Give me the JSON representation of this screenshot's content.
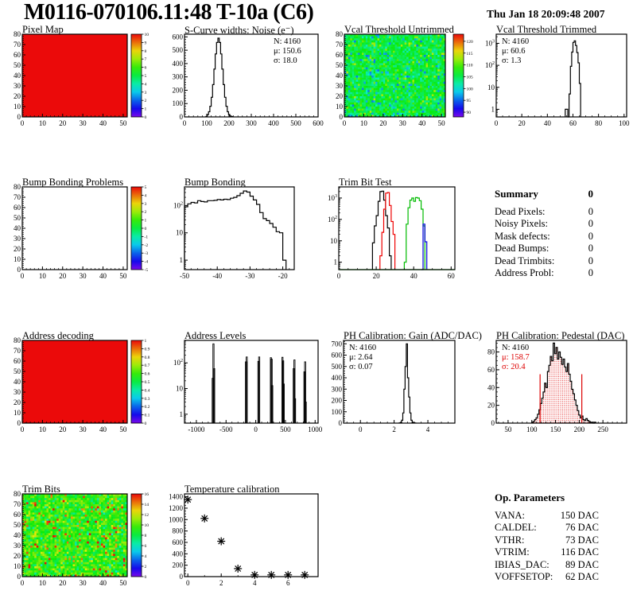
{
  "header": {
    "title": "M0116-070106.11:48 T-10a (C6)",
    "date": "Thu Jan 18 20:09:48 2007"
  },
  "summary": {
    "title": "Summary",
    "value": "0",
    "rows": [
      {
        "label": "Dead Pixels:",
        "value": "0"
      },
      {
        "label": "Noisy Pixels:",
        "value": "0"
      },
      {
        "label": "Mask defects:",
        "value": "0"
      },
      {
        "label": "Dead Bumps:",
        "value": "0"
      },
      {
        "label": "Dead Trimbits:",
        "value": "0"
      },
      {
        "label": "Address Probl:",
        "value": "0"
      }
    ]
  },
  "op_parameters": {
    "title": "Op. Parameters",
    "rows": [
      {
        "label": "VANA:",
        "value": "150 DAC"
      },
      {
        "label": "CALDEL:",
        "value": "76 DAC"
      },
      {
        "label": "VTHR:",
        "value": "73 DAC"
      },
      {
        "label": "VTRIM:",
        "value": "116 DAC"
      },
      {
        "label": "IBIAS_DAC:",
        "value": "89 DAC"
      },
      {
        "label": "VOFFSETOP:",
        "value": "62 DAC"
      }
    ]
  },
  "chart_data": [
    {
      "id": "pixel_map",
      "type": "heatmap",
      "title": "Pixel Map",
      "fill": "uniform",
      "uniform_value": 10,
      "xaxis": {
        "min": 0,
        "max": 52,
        "ticks": [
          0,
          10,
          20,
          30,
          40,
          50
        ],
        "minor": 2
      },
      "yaxis": {
        "min": 0,
        "max": 80,
        "ticks": [
          0,
          10,
          20,
          30,
          40,
          50,
          60,
          70,
          80
        ],
        "minor": 2
      },
      "colorbar": {
        "min": 0,
        "max": 10,
        "ticks": [
          0,
          1,
          2,
          3,
          4,
          5,
          6,
          7,
          8,
          9,
          10
        ]
      }
    },
    {
      "id": "scurve",
      "type": "histogram",
      "title": "S-Curve widths: Noise (e⁻)",
      "xaxis": {
        "min": 0,
        "max": 600,
        "ticks": [
          0,
          100,
          200,
          300,
          400,
          500,
          600
        ],
        "minor": 20
      },
      "yaxis": {
        "min": 0,
        "max": 620,
        "ticks": [
          0,
          100,
          200,
          300,
          400,
          500,
          600
        ],
        "minor": 20
      },
      "series": [
        {
          "color": "#000000",
          "start": 96,
          "width": 6,
          "counts": [
            3,
            17,
            39,
            80,
            147,
            242,
            358,
            472,
            558,
            590,
            558,
            472,
            358,
            242,
            147,
            80,
            39,
            17,
            7,
            3
          ]
        }
      ],
      "stats": [
        {
          "text": "N: 4160"
        },
        {
          "text": "μ: 150.6"
        },
        {
          "text": "σ: 18.0"
        }
      ]
    },
    {
      "id": "vcal_untrimmed",
      "type": "heatmap",
      "title": "Vcal Threshold Untrimmed",
      "fill": "noise",
      "noise": {
        "mean": 105.5,
        "sd": 4.2,
        "low": [
          95.5,
          0.05
        ],
        "high": [
          110.5,
          0.05
        ]
      },
      "xaxis": {
        "min": 0,
        "max": 52,
        "ticks": [
          0,
          10,
          20,
          30,
          40,
          50
        ],
        "minor": 2
      },
      "yaxis": {
        "min": 0,
        "max": 80,
        "ticks": [
          0,
          10,
          20,
          30,
          40,
          50,
          60,
          70,
          80
        ],
        "minor": 2
      },
      "colorbar": {
        "min": 88,
        "max": 123,
        "ticks": [
          90,
          95,
          100,
          105,
          110,
          115,
          120
        ]
      }
    },
    {
      "id": "vcal_trimmed",
      "type": "histogram",
      "title": "Vcal Threshold Trimmed",
      "xaxis": {
        "min": 0,
        "max": 102,
        "ticks": [
          0,
          20,
          40,
          60,
          80,
          100
        ],
        "minor": 5
      },
      "yaxis": {
        "log": true,
        "min": 0.45,
        "max": 2600
      },
      "series": [
        {
          "color": "#000000",
          "start": 54,
          "width": 1,
          "counts": [
            1,
            1,
            0,
            5,
            90,
            400,
            1100,
            1300,
            800,
            380,
            130,
            15
          ]
        }
      ],
      "stats": [
        {
          "text": "N: 4160"
        },
        {
          "text": "μ: 60.6"
        },
        {
          "text": "σ:  1.3"
        }
      ]
    },
    {
      "id": "bump_problems",
      "type": "heatmap",
      "title": "Bump Bonding Problems",
      "fill": "empty",
      "xaxis": {
        "min": 0,
        "max": 52,
        "ticks": [
          0,
          10,
          20,
          30,
          40,
          50
        ],
        "minor": 2
      },
      "yaxis": {
        "min": 0,
        "max": 80,
        "ticks": [
          0,
          10,
          20,
          30,
          40,
          50,
          60,
          70,
          80
        ],
        "minor": 2
      },
      "colorbar": {
        "min": -5,
        "max": 5,
        "ticks": [
          -5,
          -4,
          -3,
          -2,
          -1,
          0,
          1,
          2,
          3,
          4,
          5
        ]
      }
    },
    {
      "id": "bump_bonding",
      "type": "histogram",
      "title": "Bump Bonding",
      "xaxis": {
        "min": -50,
        "max": -16.5,
        "ticks": [
          -50,
          -40,
          -30,
          -20
        ],
        "minor": 2
      },
      "yaxis": {
        "log": true,
        "min": 0.45,
        "max": 480
      },
      "series": [
        {
          "color": "#000000",
          "start": -50,
          "width": 1,
          "counts": [
            90,
            115,
            130,
            125,
            150,
            140,
            135,
            150,
            150,
            155,
            165,
            160,
            170,
            165,
            185,
            200,
            230,
            280,
            340,
            310,
            220,
            160,
            110,
            55,
            33,
            28,
            22,
            16,
            11,
            10,
            1
          ]
        }
      ]
    },
    {
      "id": "trim_bit_test",
      "type": "histogram",
      "title": "Trim Bit Test",
      "baseline_color": "#00bb00",
      "xaxis": {
        "min": 0,
        "max": 62,
        "ticks": [
          0,
          20,
          40,
          60
        ],
        "minor": 5
      },
      "yaxis": {
        "log": true,
        "min": 0.45,
        "max": 3300
      },
      "series": [
        {
          "color": "#000000",
          "start": 18,
          "width": 1,
          "counts": [
            8,
            50,
            150,
            700,
            2000,
            2100,
            800,
            150,
            40,
            2
          ]
        },
        {
          "color": "#ee0000",
          "start": 22,
          "width": 1,
          "counts": [
            2,
            25,
            300,
            1700,
            1800,
            450,
            80,
            20
          ]
        },
        {
          "color": "#00bb00",
          "start": 35,
          "width": 1,
          "counts": [
            1,
            60,
            350,
            800,
            1000,
            700,
            1050,
            1000,
            750,
            300,
            50
          ]
        },
        {
          "color": "#0000dd",
          "start": 44,
          "width": 1,
          "counts": [
            0,
            60,
            9
          ]
        }
      ]
    },
    {
      "id": "address_decoding",
      "type": "heatmap",
      "title": "Address decoding",
      "fill": "uniform",
      "uniform_value": 1,
      "xaxis": {
        "min": 0,
        "max": 52,
        "ticks": [
          0,
          10,
          20,
          30,
          40,
          50
        ],
        "minor": 2
      },
      "yaxis": {
        "min": 0,
        "max": 80,
        "ticks": [
          0,
          10,
          20,
          30,
          40,
          50,
          60,
          70,
          80
        ],
        "minor": 2
      },
      "colorbar": {
        "min": 0,
        "max": 1,
        "ticks": [
          0,
          0.1,
          0.2,
          0.3,
          0.4,
          0.5,
          0.6,
          0.7,
          0.8,
          0.9,
          1
        ]
      }
    },
    {
      "id": "address_levels",
      "type": "spikes",
      "title": "Address Levels",
      "xaxis": {
        "min": -1200,
        "max": 1050,
        "ticks": [
          -1000,
          -500,
          0,
          500,
          1000
        ],
        "minor": 100
      },
      "yaxis": {
        "log": true,
        "min": 0.45,
        "max": 750
      },
      "points": [
        [
          -725,
          25
        ],
        [
          -712,
          550
        ],
        [
          -700,
          60
        ],
        [
          -165,
          110
        ],
        [
          -152,
          170
        ],
        [
          45,
          115
        ],
        [
          58,
          170
        ],
        [
          255,
          160
        ],
        [
          268,
          140
        ],
        [
          278,
          13
        ],
        [
          450,
          165
        ],
        [
          462,
          120
        ],
        [
          472,
          15
        ],
        [
          640,
          60
        ],
        [
          652,
          130
        ],
        [
          662,
          4
        ],
        [
          820,
          45
        ],
        [
          832,
          110
        ],
        [
          842,
          3
        ]
      ]
    },
    {
      "id": "ph_gain",
      "type": "histogram",
      "title": "PH Calibration: Gain (ADC/DAC)",
      "xaxis": {
        "min": -1,
        "max": 5.6,
        "ticks": [
          0,
          2,
          4
        ],
        "minor": 0.4
      },
      "yaxis": {
        "min": 0,
        "max": 730,
        "ticks": [
          0,
          100,
          200,
          300,
          400,
          500,
          600,
          700
        ],
        "minor": 20
      },
      "series": [
        {
          "color": "#000000",
          "start": 2.3,
          "width": 0.07,
          "counts": [
            2,
            6,
            25,
            90,
            300,
            500,
            700,
            400,
            230,
            90,
            25,
            8,
            3,
            1
          ]
        }
      ],
      "stats": [
        {
          "text": "N: 4160"
        },
        {
          "text": "μ: 2.64"
        },
        {
          "text": "σ: 0.07"
        }
      ]
    },
    {
      "id": "ph_pedestal",
      "type": "histogram",
      "title": "PH Calibration: Pedestal (DAC)",
      "xaxis": {
        "min": 25,
        "max": 300,
        "ticks": [
          50,
          100,
          150,
          200,
          250
        ],
        "minor": 10
      },
      "yaxis": {
        "min": 0,
        "max": 93,
        "ticks": [
          0,
          20,
          40,
          60,
          80
        ],
        "minor": 5
      },
      "series": [
        {
          "color": "#000000",
          "fill": "dots",
          "start": 100,
          "width": 3,
          "counts": [
            1,
            2,
            4,
            6,
            10,
            15,
            22,
            28,
            35,
            45,
            40,
            58,
            65,
            75,
            70,
            90,
            78,
            85,
            72,
            80,
            74,
            66,
            72,
            63,
            58,
            67,
            55,
            47,
            38,
            33,
            26,
            20,
            14,
            9,
            6,
            8,
            4,
            3,
            5,
            3,
            2,
            1,
            1,
            0,
            1
          ]
        }
      ],
      "fit_lines": {
        "x": [
          117.5,
          205.5
        ],
        "height": 55,
        "color": "#dd0000"
      },
      "stats": [
        {
          "text": "N: 4160",
          "color": "#000000"
        },
        {
          "text": "μ: 158.7",
          "color": "#dd0000"
        },
        {
          "text": "σ: 20.4",
          "color": "#dd0000"
        }
      ]
    },
    {
      "id": "trim_bits",
      "type": "heatmap",
      "title": "Trim Bits",
      "fill": "noise",
      "noise": {
        "mean": 9.5,
        "sd": 2.4,
        "low": [
          5.6,
          0.05
        ],
        "high": [
          13.5,
          0.05
        ]
      },
      "xaxis": {
        "min": 0,
        "max": 52,
        "ticks": [
          0,
          10,
          20,
          30,
          40,
          50
        ],
        "minor": 2
      },
      "yaxis": {
        "min": 0,
        "max": 80,
        "ticks": [
          0,
          10,
          20,
          30,
          40,
          50,
          60,
          70,
          80
        ],
        "minor": 2
      },
      "colorbar": {
        "min": 0,
        "max": 16,
        "ticks": [
          0,
          2,
          4,
          6,
          8,
          10,
          12,
          14,
          16
        ]
      }
    },
    {
      "id": "temp_calibration",
      "type": "scatter",
      "title": "Temperature calibration",
      "xaxis": {
        "min": -0.2,
        "max": 7.8,
        "ticks": [
          0,
          2,
          4,
          6
        ],
        "minor": 1
      },
      "yaxis": {
        "min": 0,
        "max": 1450,
        "ticks": [
          0,
          200,
          400,
          600,
          800,
          1000,
          1200,
          1400
        ],
        "minor": 50
      },
      "points": [
        [
          0,
          1350
        ],
        [
          1,
          1020
        ],
        [
          2,
          620
        ],
        [
          3,
          140
        ],
        [
          4,
          30
        ],
        [
          5,
          30
        ],
        [
          6,
          30
        ],
        [
          7,
          30
        ]
      ]
    }
  ]
}
